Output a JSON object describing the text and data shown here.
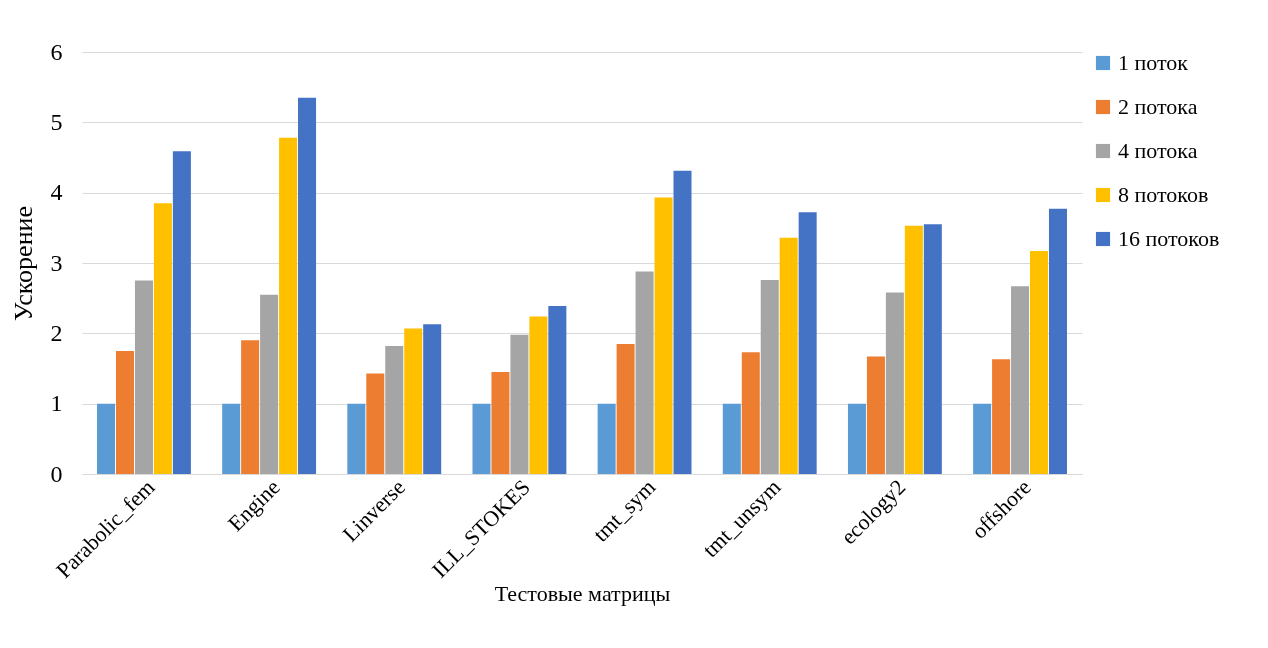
{
  "chart_data": {
    "type": "bar",
    "xlabel": "Тестовые матрицы",
    "ylabel": "Ускорение",
    "categories": [
      "Parabolic_fem",
      "Engine",
      "Linverse",
      "ILL_STOKES",
      "tmt_sym",
      "tmt_unsym",
      "ecology2",
      "offshore"
    ],
    "series": [
      {
        "name": "1 поток",
        "color": "#5b9bd5",
        "values": [
          1,
          1,
          1,
          1,
          1,
          1,
          1,
          1
        ]
      },
      {
        "name": "2 потока",
        "color": "#ed7d31",
        "values": [
          1.75,
          1.9,
          1.43,
          1.45,
          1.85,
          1.73,
          1.67,
          1.63
        ]
      },
      {
        "name": "4 потока",
        "color": "#a5a5a5",
        "values": [
          2.75,
          2.55,
          1.82,
          1.98,
          2.88,
          2.76,
          2.58,
          2.67
        ]
      },
      {
        "name": "8 потоков",
        "color": "#ffc000",
        "values": [
          3.85,
          4.78,
          2.07,
          2.24,
          3.93,
          3.36,
          3.53,
          3.17
        ]
      },
      {
        "name": "16 потоков",
        "color": "#4472c4",
        "values": [
          4.59,
          5.35,
          2.13,
          2.39,
          4.31,
          3.72,
          3.55,
          3.77
        ]
      }
    ],
    "ylim": [
      0,
      6
    ],
    "yticks": [
      0,
      1,
      2,
      3,
      4,
      5,
      6
    ],
    "grid": "y",
    "legend": "right"
  }
}
